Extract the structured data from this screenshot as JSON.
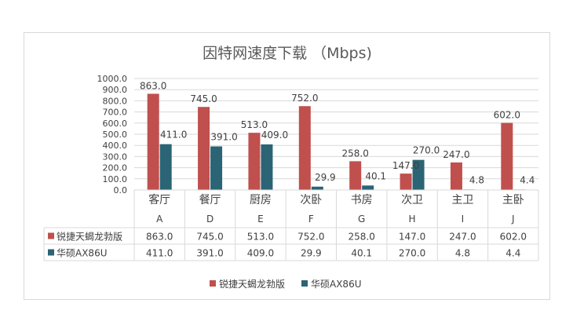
{
  "chart_data": {
    "type": "bar",
    "title": "因特网速度下载 （Mbps)",
    "categories": [
      "客厅",
      "餐厅",
      "厨房",
      "次卧",
      "书房",
      "次卫",
      "主卫",
      "主卧"
    ],
    "sublabels": [
      "A",
      "D",
      "E",
      "F",
      "G",
      "H",
      "I",
      "J"
    ],
    "ylim": [
      0,
      1000
    ],
    "ytick_step": 100,
    "ytick_labels": [
      "0.0",
      "100.0",
      "200.0",
      "300.0",
      "400.0",
      "500.0",
      "600.0",
      "700.0",
      "800.0",
      "900.0",
      "1000.0"
    ],
    "grid": true,
    "legend": "bottom",
    "series": [
      {
        "name": "锐捷天蝎龙勃版",
        "color": "#c0504d",
        "values": [
          863.0,
          745.0,
          513.0,
          752.0,
          258.0,
          147.0,
          247.0,
          602.0
        ],
        "labels": [
          "863.0",
          "745.0",
          "513.0",
          "752.0",
          "258.0",
          "147.0",
          "247.0",
          "602.0"
        ]
      },
      {
        "name": "华硕AX86U",
        "color": "#2a6475",
        "values": [
          411.0,
          391.0,
          409.0,
          29.9,
          40.1,
          270.0,
          4.8,
          4.4
        ],
        "labels": [
          "411.0",
          "391.0",
          "409.0",
          "29.9",
          "40.1",
          "270.0",
          "4.8",
          "4.4"
        ]
      }
    ]
  }
}
